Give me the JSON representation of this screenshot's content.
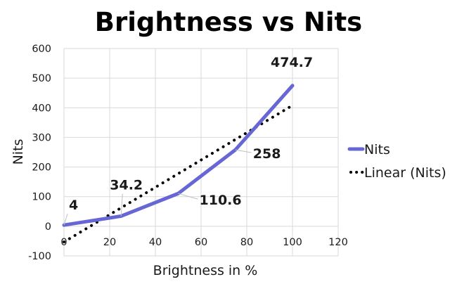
{
  "chart_data": {
    "type": "line",
    "title": "Brightness vs Nits",
    "xlabel": "Brightness in %",
    "ylabel": "Nits",
    "xlim": [
      0,
      120
    ],
    "ylim": [
      -100,
      600
    ],
    "x_ticks": [
      0,
      20,
      40,
      60,
      80,
      100,
      120
    ],
    "y_ticks": [
      -100,
      0,
      100,
      200,
      300,
      400,
      500,
      600
    ],
    "grid": true,
    "legend_position": "right",
    "series": [
      {
        "name": "Nits",
        "color": "#6667d4",
        "style": "solid",
        "x": [
          0,
          25,
          50,
          75,
          100
        ],
        "values": [
          4,
          34.2,
          110.6,
          258,
          474.7
        ],
        "data_labels": [
          "4",
          "34.2",
          "110.6",
          "258",
          "474.7"
        ]
      },
      {
        "name": "Linear (Nits)",
        "color": "#000000",
        "style": "dotted",
        "x": [
          0,
          100
        ],
        "values": [
          -53,
          408
        ]
      }
    ]
  }
}
